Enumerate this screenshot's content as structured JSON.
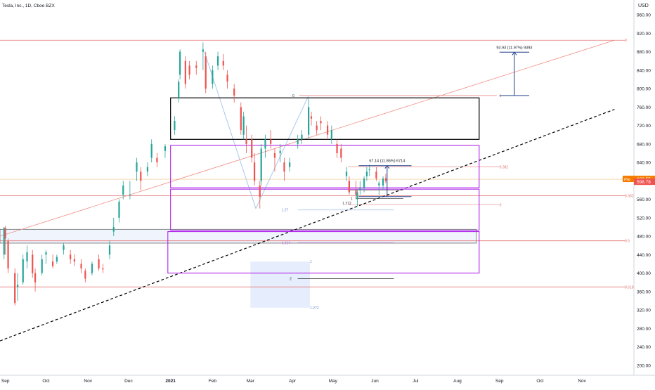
{
  "header": {
    "symbol_title": "Tesla, Inc., 1D, Cboe BZX",
    "currency": "USD"
  },
  "price_axis": {
    "ticks": [
      "960.00",
      "920.00",
      "880.00",
      "840.00",
      "800.00",
      "760.00",
      "720.00",
      "680.00",
      "640.00",
      "600.00",
      "560.00",
      "520.00",
      "480.00",
      "440.00",
      "400.00",
      "360.00",
      "320.00",
      "280.00",
      "240.00",
      "200.00"
    ],
    "tick_values": [
      960,
      920,
      880,
      840,
      800,
      760,
      720,
      680,
      640,
      600,
      560,
      520,
      480,
      440,
      400,
      360,
      320,
      280,
      240,
      200
    ],
    "price_tag": "603.55",
    "price_tag_prefix": "Pre",
    "last_price_tag": "598.78",
    "price_tag_value": 603.55,
    "last_price_value": 598.78
  },
  "time_axis": {
    "labels": [
      "Sep",
      "Oct",
      "Nov",
      "Dec",
      "2021",
      "Feb",
      "Mar",
      "Apr",
      "May",
      "Jun",
      "Jul",
      "Aug",
      "Sep",
      "Oct",
      "Nov"
    ],
    "bold_label": "2021",
    "dates": [
      "2020-09-01",
      "2020-10-01",
      "2020-11-01",
      "2020-12-01",
      "2021-01-01",
      "2021-02-01",
      "2021-03-01",
      "2021-04-01",
      "2021-05-01",
      "2021-06-01",
      "2021-07-01",
      "2021-08-01",
      "2021-09-01",
      "2021-10-01",
      "2021-11-01"
    ]
  },
  "annotations": {
    "measure_top": "93.93 (11.97%) 9393",
    "measure_mid": "67.14 (11.86%) 6714",
    "fib_right_0": "0",
    "fib_right_1": "1",
    "fib_right_0382": "0.382",
    "fib_right_0382b": "0.382",
    "fib_right_05": "0.5",
    "fib_right_0618": "0.618",
    "fib_zero_a": "0",
    "fib_zero_b": "0",
    "ext_1272_a": "1.272",
    "ext_127": "1.27",
    "ext_1414": "1.414",
    "ext_1": "1",
    "ext_2": "2",
    "ext_1272_b": "1.272",
    "ext_1_small": "1"
  },
  "colors": {
    "up": "#26a69a",
    "down": "#ef5350",
    "price_tag": "#f57c00",
    "fib": "#e57373",
    "zone": "#b026e8",
    "box": "#000000",
    "measure": "#1e3f8a"
  },
  "chart_data": {
    "type": "candlestick",
    "title": "Tesla, Inc., 1D, Cboe BZX",
    "currency": "USD",
    "y_range": [
      180,
      980
    ],
    "x_range": [
      "2020-08-28",
      "2021-11-30"
    ],
    "grid": false,
    "horizontal_levels": [
      {
        "label": "0",
        "value": 905
      },
      {
        "label": "1",
        "value": 785
      },
      {
        "label": "0.382",
        "value": 568
      },
      {
        "label": "0.5",
        "value": 470
      },
      {
        "label": "0.618",
        "value": 370
      },
      {
        "label": "0.382",
        "value": 630
      },
      {
        "label": "0",
        "value": 548
      }
    ],
    "zones": [
      {
        "name": "black-box",
        "from": "2021-01-01",
        "to": "2021-08-17",
        "low": 690,
        "high": 780
      },
      {
        "name": "purple-zone-1",
        "from": "2021-01-01",
        "to": "2021-08-17",
        "low": 585,
        "high": 677
      },
      {
        "name": "purple-zone-2",
        "from": "2021-01-01",
        "to": "2021-08-17",
        "low": 493,
        "high": 582
      },
      {
        "name": "purple-zone-3",
        "from": "2020-12-30",
        "to": "2021-08-17",
        "low": 400,
        "high": 490
      },
      {
        "name": "grey-band",
        "from": "2020-08-28",
        "to": "2021-08-15",
        "low": 465,
        "high": 495
      }
    ],
    "trendlines": [
      {
        "name": "dashed-support",
        "from": [
          "2020-08-28",
          253
        ],
        "to": [
          "2021-11-25",
          755
        ]
      },
      {
        "name": "red-channel",
        "from": [
          "2020-08-28",
          480
        ],
        "to": [
          "2021-11-25",
          905
        ]
      }
    ],
    "measures": [
      {
        "label": "93.93 (11.97%) 9393",
        "from": 785,
        "to": 879
      },
      {
        "label": "67.14 (11.86%) 6714",
        "from": 566,
        "to": 633
      }
    ],
    "candles": [
      {
        "date": "2020-08-31",
        "open": 440,
        "high": 500,
        "low": 430,
        "close": 498
      },
      {
        "date": "2020-09-01",
        "open": 498,
        "high": 502,
        "low": 440,
        "close": 475
      },
      {
        "date": "2020-09-03",
        "open": 470,
        "high": 475,
        "low": 400,
        "close": 410
      },
      {
        "date": "2020-09-08",
        "open": 400,
        "high": 410,
        "low": 330,
        "close": 335
      },
      {
        "date": "2020-09-10",
        "open": 370,
        "high": 400,
        "low": 340,
        "close": 375
      },
      {
        "date": "2020-09-14",
        "open": 380,
        "high": 440,
        "low": 375,
        "close": 430
      },
      {
        "date": "2020-09-17",
        "open": 425,
        "high": 460,
        "low": 410,
        "close": 445
      },
      {
        "date": "2020-09-21",
        "open": 440,
        "high": 450,
        "low": 390,
        "close": 400
      },
      {
        "date": "2020-09-23",
        "open": 400,
        "high": 410,
        "low": 360,
        "close": 380
      },
      {
        "date": "2020-09-28",
        "open": 400,
        "high": 440,
        "low": 395,
        "close": 430
      },
      {
        "date": "2020-10-01",
        "open": 440,
        "high": 450,
        "low": 420,
        "close": 445
      },
      {
        "date": "2020-10-06",
        "open": 425,
        "high": 440,
        "low": 410,
        "close": 415
      },
      {
        "date": "2020-10-09",
        "open": 425,
        "high": 440,
        "low": 420,
        "close": 435
      },
      {
        "date": "2020-10-14",
        "open": 450,
        "high": 465,
        "low": 440,
        "close": 460
      },
      {
        "date": "2020-10-19",
        "open": 440,
        "high": 450,
        "low": 420,
        "close": 430
      },
      {
        "date": "2020-10-22",
        "open": 430,
        "high": 440,
        "low": 415,
        "close": 425
      },
      {
        "date": "2020-10-27",
        "open": 420,
        "high": 430,
        "low": 400,
        "close": 410
      },
      {
        "date": "2020-10-30",
        "open": 405,
        "high": 410,
        "low": 380,
        "close": 388
      },
      {
        "date": "2020-11-04",
        "open": 400,
        "high": 425,
        "low": 395,
        "close": 420
      },
      {
        "date": "2020-11-09",
        "open": 430,
        "high": 440,
        "low": 405,
        "close": 410
      },
      {
        "date": "2020-11-12",
        "open": 410,
        "high": 420,
        "low": 400,
        "close": 408
      },
      {
        "date": "2020-11-17",
        "open": 440,
        "high": 470,
        "low": 430,
        "close": 460
      },
      {
        "date": "2020-11-20",
        "open": 490,
        "high": 520,
        "low": 480,
        "close": 500
      },
      {
        "date": "2020-11-24",
        "open": 520,
        "high": 560,
        "low": 510,
        "close": 555
      },
      {
        "date": "2020-11-27",
        "open": 570,
        "high": 600,
        "low": 560,
        "close": 590
      },
      {
        "date": "2020-12-02",
        "open": 570,
        "high": 600,
        "low": 560,
        "close": 570
      },
      {
        "date": "2020-12-07",
        "open": 620,
        "high": 650,
        "low": 600,
        "close": 640
      },
      {
        "date": "2020-12-10",
        "open": 620,
        "high": 630,
        "low": 580,
        "close": 600
      },
      {
        "date": "2020-12-15",
        "open": 620,
        "high": 640,
        "low": 610,
        "close": 630
      },
      {
        "date": "2020-12-18",
        "open": 650,
        "high": 690,
        "low": 640,
        "close": 680
      },
      {
        "date": "2020-12-22",
        "open": 650,
        "high": 660,
        "low": 630,
        "close": 640
      },
      {
        "date": "2020-12-28",
        "open": 665,
        "high": 680,
        "low": 650,
        "close": 675
      },
      {
        "date": "2021-01-04",
        "open": 710,
        "high": 740,
        "low": 700,
        "close": 730
      },
      {
        "date": "2021-01-07",
        "open": 780,
        "high": 820,
        "low": 770,
        "close": 815
      },
      {
        "date": "2021-01-08",
        "open": 830,
        "high": 885,
        "low": 820,
        "close": 880
      },
      {
        "date": "2021-01-12",
        "open": 860,
        "high": 870,
        "low": 800,
        "close": 810
      },
      {
        "date": "2021-01-15",
        "open": 850,
        "high": 860,
        "low": 820,
        "close": 830
      },
      {
        "date": "2021-01-20",
        "open": 850,
        "high": 860,
        "low": 830,
        "close": 845
      },
      {
        "date": "2021-01-25",
        "open": 880,
        "high": 900,
        "low": 840,
        "close": 885
      },
      {
        "date": "2021-01-27",
        "open": 870,
        "high": 880,
        "low": 790,
        "close": 800
      },
      {
        "date": "2021-02-01",
        "open": 810,
        "high": 850,
        "low": 800,
        "close": 840
      },
      {
        "date": "2021-02-05",
        "open": 850,
        "high": 880,
        "low": 840,
        "close": 870
      },
      {
        "date": "2021-02-09",
        "open": 860,
        "high": 875,
        "low": 840,
        "close": 850
      },
      {
        "date": "2021-02-12",
        "open": 830,
        "high": 840,
        "low": 800,
        "close": 815
      },
      {
        "date": "2021-02-17",
        "open": 800,
        "high": 810,
        "low": 770,
        "close": 785
      },
      {
        "date": "2021-02-22",
        "open": 760,
        "high": 770,
        "low": 700,
        "close": 710
      },
      {
        "date": "2021-02-24",
        "open": 700,
        "high": 750,
        "low": 690,
        "close": 740
      },
      {
        "date": "2021-02-26",
        "open": 690,
        "high": 720,
        "low": 660,
        "close": 680
      },
      {
        "date": "2021-03-02",
        "open": 690,
        "high": 700,
        "low": 640,
        "close": 650
      },
      {
        "date": "2021-03-04",
        "open": 640,
        "high": 660,
        "low": 590,
        "close": 600
      },
      {
        "date": "2021-03-08",
        "open": 590,
        "high": 600,
        "low": 540,
        "close": 565
      },
      {
        "date": "2021-03-09",
        "open": 600,
        "high": 680,
        "low": 590,
        "close": 670
      },
      {
        "date": "2021-03-12",
        "open": 670,
        "high": 700,
        "low": 650,
        "close": 690
      },
      {
        "date": "2021-03-16",
        "open": 690,
        "high": 710,
        "low": 670,
        "close": 680
      },
      {
        "date": "2021-03-19",
        "open": 660,
        "high": 670,
        "low": 620,
        "close": 650
      },
      {
        "date": "2021-03-23",
        "open": 660,
        "high": 680,
        "low": 640,
        "close": 665
      },
      {
        "date": "2021-03-26",
        "open": 640,
        "high": 650,
        "low": 600,
        "close": 620
      },
      {
        "date": "2021-03-30",
        "open": 630,
        "high": 650,
        "low": 620,
        "close": 640
      },
      {
        "date": "2021-04-05",
        "open": 680,
        "high": 700,
        "low": 670,
        "close": 690
      },
      {
        "date": "2021-04-08",
        "open": 690,
        "high": 710,
        "low": 680,
        "close": 700
      },
      {
        "date": "2021-04-13",
        "open": 700,
        "high": 780,
        "low": 690,
        "close": 760
      },
      {
        "date": "2021-04-15",
        "open": 740,
        "high": 750,
        "low": 720,
        "close": 735
      },
      {
        "date": "2021-04-19",
        "open": 720,
        "high": 730,
        "low": 700,
        "close": 710
      },
      {
        "date": "2021-04-22",
        "open": 730,
        "high": 740,
        "low": 710,
        "close": 725
      },
      {
        "date": "2021-04-27",
        "open": 720,
        "high": 730,
        "low": 690,
        "close": 700
      },
      {
        "date": "2021-04-30",
        "open": 690,
        "high": 720,
        "low": 680,
        "close": 710
      },
      {
        "date": "2021-05-04",
        "open": 680,
        "high": 690,
        "low": 650,
        "close": 660
      },
      {
        "date": "2021-05-07",
        "open": 670,
        "high": 680,
        "low": 640,
        "close": 650
      },
      {
        "date": "2021-05-11",
        "open": 610,
        "high": 630,
        "low": 600,
        "close": 620
      },
      {
        "date": "2021-05-13",
        "open": 600,
        "high": 610,
        "low": 570,
        "close": 575
      },
      {
        "date": "2021-05-18",
        "open": 580,
        "high": 600,
        "low": 560,
        "close": 570
      },
      {
        "date": "2021-05-19",
        "open": 560,
        "high": 580,
        "low": 545,
        "close": 575
      },
      {
        "date": "2021-05-21",
        "open": 580,
        "high": 600,
        "low": 570,
        "close": 585
      },
      {
        "date": "2021-05-24",
        "open": 585,
        "high": 610,
        "low": 575,
        "close": 605
      },
      {
        "date": "2021-05-26",
        "open": 610,
        "high": 630,
        "low": 600,
        "close": 620
      },
      {
        "date": "2021-05-28",
        "open": 625,
        "high": 635,
        "low": 610,
        "close": 625
      },
      {
        "date": "2021-06-02",
        "open": 620,
        "high": 630,
        "low": 600,
        "close": 605
      },
      {
        "date": "2021-06-04",
        "open": 590,
        "high": 600,
        "low": 570,
        "close": 595
      },
      {
        "date": "2021-06-07",
        "open": 590,
        "high": 610,
        "low": 580,
        "close": 605
      },
      {
        "date": "2021-06-09",
        "open": 605,
        "high": 615,
        "low": 595,
        "close": 600
      }
    ]
  }
}
